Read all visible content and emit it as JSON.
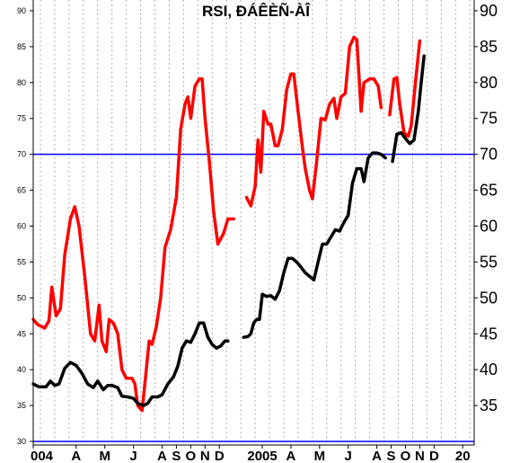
{
  "chart_data": {
    "type": "line",
    "title": "RSI, ĐÁÊÈÑ-ÀÎ",
    "xlabel": "",
    "ylabel": "",
    "ylim": [
      29.5,
      91.5
    ],
    "y_ticks_left": [
      "30",
      "35",
      "40",
      "45",
      "50",
      "55",
      "60",
      "65",
      "70",
      "75",
      "80",
      "85",
      "90"
    ],
    "y_ticks_right": [
      "35",
      "40",
      "45",
      "50",
      "55",
      "60",
      "65",
      "70",
      "75",
      "80",
      "85",
      "90"
    ],
    "x_ticks": [
      {
        "label": "004",
        "i": 0
      },
      {
        "label": "A",
        "i": 3
      },
      {
        "label": "M",
        "i": 5
      },
      {
        "label": "J",
        "i": 7
      },
      {
        "label": "A",
        "i": 9
      },
      {
        "label": "S",
        "i": 10
      },
      {
        "label": "O",
        "i": 11
      },
      {
        "label": "N",
        "i": 12
      },
      {
        "label": "D",
        "i": 13
      },
      {
        "label": "2005",
        "i": 16
      },
      {
        "label": "A",
        "i": 18
      },
      {
        "label": "M",
        "i": 20
      },
      {
        "label": "J",
        "i": 22
      },
      {
        "label": "A",
        "i": 24
      },
      {
        "label": "S",
        "i": 25
      },
      {
        "label": "O",
        "i": 26
      },
      {
        "label": "N",
        "i": 27
      },
      {
        "label": "D",
        "i": 28
      },
      {
        "label": "20",
        "i": 30
      }
    ],
    "x_range": [
      0,
      30.8
    ],
    "reference_lines": [
      70,
      30
    ],
    "grid": "vertical-dotted",
    "colors": {
      "rsi_fast": "#ff0000",
      "rsi_slow": "#000000",
      "reference": "#0000ff"
    },
    "series": [
      {
        "color": "#ff0000",
        "segments": [
          [
            [
              0,
              47
            ],
            [
              0.3,
              46.3
            ],
            [
              0.8,
              45.8
            ],
            [
              1.1,
              46.8
            ],
            [
              1.3,
              51.5
            ],
            [
              1.6,
              47.5
            ],
            [
              1.9,
              48.5
            ],
            [
              2.2,
              56
            ],
            [
              2.6,
              61
            ],
            [
              2.9,
              62.7
            ],
            [
              3.2,
              60
            ],
            [
              3.6,
              53
            ],
            [
              4,
              45
            ],
            [
              4.3,
              44
            ],
            [
              4.6,
              49
            ],
            [
              4.8,
              44
            ],
            [
              5.1,
              42.5
            ],
            [
              5.3,
              47
            ],
            [
              5.6,
              46.5
            ],
            [
              5.9,
              45
            ],
            [
              6.2,
              40
            ],
            [
              6.5,
              38.8
            ],
            [
              6.9,
              38.8
            ],
            [
              7.1,
              38
            ],
            [
              7.3,
              35
            ],
            [
              7.6,
              34.3
            ],
            [
              7.8,
              38
            ],
            [
              8.1,
              44
            ],
            [
              8.3,
              43.5
            ],
            [
              8.6,
              46
            ],
            [
              8.9,
              50
            ],
            [
              9.2,
              57
            ],
            [
              9.6,
              59.5
            ],
            [
              10,
              64
            ],
            [
              10.3,
              73.5
            ],
            [
              10.6,
              77
            ],
            [
              10.8,
              78
            ],
            [
              11,
              75
            ],
            [
              11.3,
              79.5
            ],
            [
              11.6,
              80.5
            ],
            [
              11.8,
              80.5
            ],
            [
              12,
              75
            ],
            [
              12.3,
              69
            ],
            [
              12.6,
              62
            ],
            [
              12.9,
              57.5
            ],
            [
              13.3,
              59
            ],
            [
              13.6,
              61
            ],
            [
              14,
              61
            ]
          ],
          [
            [
              14.9,
              64
            ],
            [
              15.2,
              62.8
            ],
            [
              15.5,
              65.5
            ],
            [
              15.7,
              72
            ],
            [
              15.9,
              67.5
            ],
            [
              16.1,
              76
            ],
            [
              16.4,
              74.2
            ],
            [
              16.6,
              74.2
            ],
            [
              16.9,
              71.2
            ],
            [
              17.1,
              71.2
            ],
            [
              17.4,
              73.5
            ],
            [
              17.7,
              79
            ],
            [
              18,
              81.2
            ],
            [
              18.2,
              81.2
            ],
            [
              18.5,
              76
            ],
            [
              18.8,
              71
            ],
            [
              19,
              68
            ],
            [
              19.3,
              65
            ],
            [
              19.5,
              63.8
            ],
            [
              19.8,
              69
            ],
            [
              20.1,
              75
            ],
            [
              20.4,
              74.8
            ],
            [
              20.7,
              77
            ],
            [
              21,
              77.8
            ],
            [
              21.2,
              75
            ],
            [
              21.5,
              78
            ],
            [
              21.8,
              78.5
            ],
            [
              22.1,
              85
            ],
            [
              22.4,
              86.3
            ],
            [
              22.6,
              86
            ],
            [
              22.9,
              76
            ],
            [
              23.1,
              80
            ],
            [
              23.5,
              80.5
            ],
            [
              23.8,
              80.5
            ],
            [
              24.1,
              79.5
            ],
            [
              24.3,
              76.5
            ]
          ],
          [
            [
              24.9,
              75.5
            ],
            [
              25.2,
              80.5
            ],
            [
              25.4,
              80.7
            ],
            [
              25.6,
              77
            ],
            [
              25.9,
              73
            ],
            [
              26.2,
              72.5
            ],
            [
              26.4,
              74
            ],
            [
              26.7,
              80
            ],
            [
              27,
              85.8
            ]
          ]
        ]
      },
      {
        "color": "#000000",
        "segments": [
          [
            [
              0,
              38
            ],
            [
              0.4,
              37.6
            ],
            [
              0.9,
              37.6
            ],
            [
              1.2,
              38.4
            ],
            [
              1.5,
              37.8
            ],
            [
              1.8,
              38
            ],
            [
              2.2,
              40.2
            ],
            [
              2.6,
              41
            ],
            [
              3,
              40.6
            ],
            [
              3.4,
              39.5
            ],
            [
              3.8,
              38
            ],
            [
              4.2,
              37.5
            ],
            [
              4.5,
              38.4
            ],
            [
              4.9,
              37.2
            ],
            [
              5.2,
              37.8
            ],
            [
              5.5,
              37.8
            ],
            [
              5.9,
              37.5
            ],
            [
              6.2,
              36.3
            ],
            [
              6.6,
              36.2
            ],
            [
              7,
              36
            ],
            [
              7.3,
              35.3
            ],
            [
              7.7,
              35
            ],
            [
              8,
              35.3
            ],
            [
              8.3,
              36.2
            ],
            [
              8.7,
              36.2
            ],
            [
              9,
              36.5
            ],
            [
              9.4,
              38
            ],
            [
              9.8,
              39
            ],
            [
              10.1,
              40.5
            ],
            [
              10.4,
              43
            ],
            [
              10.7,
              44
            ],
            [
              11,
              43.8
            ],
            [
              11.3,
              45
            ],
            [
              11.6,
              46.5
            ],
            [
              11.9,
              46.5
            ],
            [
              12.2,
              44.5
            ],
            [
              12.5,
              43.5
            ],
            [
              12.8,
              43
            ],
            [
              13.1,
              43.3
            ],
            [
              13.4,
              44
            ],
            [
              13.6,
              44
            ]
          ],
          [
            [
              14.7,
              44.5
            ],
            [
              15,
              44.6
            ],
            [
              15.2,
              45
            ],
            [
              15.4,
              46.5
            ],
            [
              15.6,
              47
            ],
            [
              15.8,
              47
            ],
            [
              16,
              50.5
            ],
            [
              16.3,
              50.2
            ],
            [
              16.6,
              50.3
            ],
            [
              16.9,
              49.8
            ],
            [
              17.2,
              51
            ],
            [
              17.5,
              53.5
            ],
            [
              17.8,
              55.5
            ],
            [
              18.1,
              55.5
            ],
            [
              18.4,
              55
            ],
            [
              18.7,
              54.3
            ],
            [
              19,
              53.5
            ],
            [
              19.3,
              53
            ],
            [
              19.6,
              52.5
            ],
            [
              19.9,
              55
            ],
            [
              20.2,
              57.5
            ],
            [
              20.5,
              57.5
            ],
            [
              20.8,
              58.5
            ],
            [
              21.1,
              59.5
            ],
            [
              21.4,
              59.3
            ],
            [
              21.7,
              60.5
            ],
            [
              22,
              61.5
            ],
            [
              22.3,
              66
            ],
            [
              22.6,
              68
            ],
            [
              22.9,
              68
            ],
            [
              23.1,
              66.2
            ],
            [
              23.4,
              69.5
            ],
            [
              23.7,
              70.2
            ],
            [
              24,
              70.2
            ],
            [
              24.3,
              70
            ],
            [
              24.6,
              69.5
            ]
          ],
          [
            [
              25.1,
              69
            ],
            [
              25.4,
              72.8
            ],
            [
              25.7,
              73
            ],
            [
              26,
              72.2
            ],
            [
              26.3,
              71.5
            ],
            [
              26.6,
              72
            ],
            [
              26.9,
              76
            ],
            [
              27.1,
              80
            ],
            [
              27.3,
              83.7
            ]
          ]
        ]
      }
    ]
  }
}
